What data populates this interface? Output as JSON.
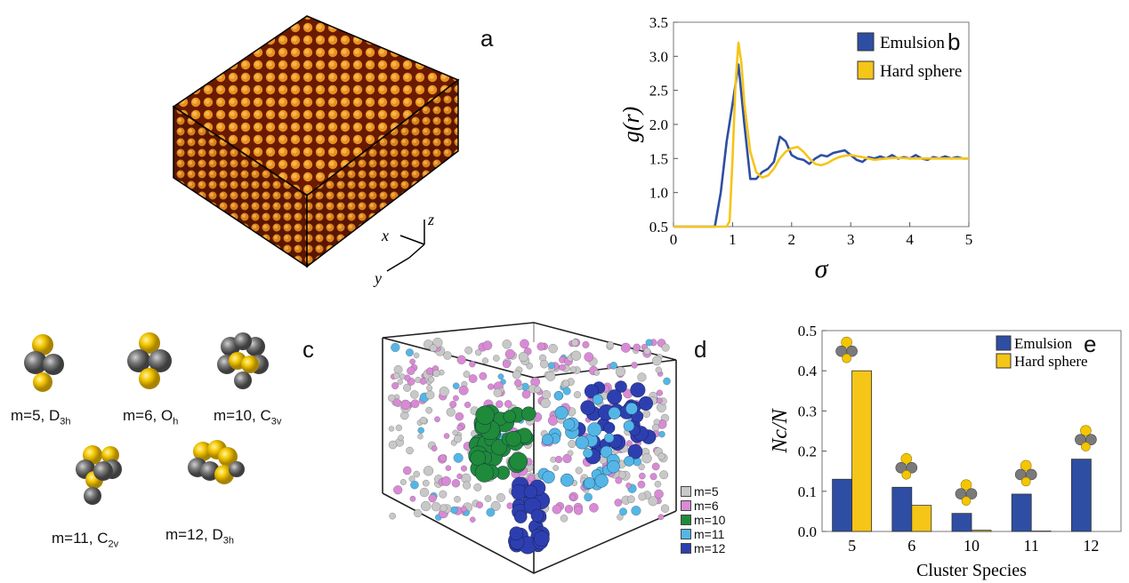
{
  "panels": {
    "a": {
      "label": "a",
      "axes": {
        "x": "x",
        "y": "y",
        "z": "z"
      }
    },
    "b": {
      "label": "b"
    },
    "c": {
      "label": "c",
      "clusters": [
        {
          "m": "m=5, ",
          "sym": "D",
          "sub": "3h"
        },
        {
          "m": "m=6, ",
          "sym": "O",
          "sub": "h"
        },
        {
          "m": "m=10, ",
          "sym": "C",
          "sub": "3v"
        },
        {
          "m": "m=11, ",
          "sym": "C",
          "sub": "2v"
        },
        {
          "m": "m=12, ",
          "sym": "D",
          "sub": "3h"
        }
      ]
    },
    "d": {
      "label": "d",
      "legend": [
        {
          "label": "m=5",
          "color": "#c8c8c8"
        },
        {
          "label": "m=6",
          "color": "#d98ad6"
        },
        {
          "label": "m=10",
          "color": "#1f8a3a"
        },
        {
          "label": "m=11",
          "color": "#54b6e6"
        },
        {
          "label": "m=12",
          "color": "#2d3fb0"
        }
      ]
    },
    "e": {
      "label": "e"
    }
  },
  "colors": {
    "emulsion": "#2e4ea3",
    "hard_sphere": "#f5c518",
    "cluster_gray": "#7a7a7a",
    "cluster_yellow": "#f3c600"
  },
  "chart_data": [
    {
      "type": "line",
      "panel": "b",
      "xlabel": "σ",
      "ylabel": "g(r)",
      "xlim": [
        0,
        5
      ],
      "ylim": [
        0.5,
        3.5
      ],
      "xticks": [
        "0",
        "1",
        "2",
        "3",
        "4",
        "5"
      ],
      "yticks": [
        "0.5",
        "1.0",
        "1.5",
        "2.0",
        "2.5",
        "3.0",
        "3.5"
      ],
      "legend_position": "top-right",
      "series": [
        {
          "name": "Emulsion",
          "color": "#2e4ea3",
          "x": [
            0,
            0.7,
            0.8,
            0.9,
            1.0,
            1.1,
            1.2,
            1.3,
            1.4,
            1.5,
            1.6,
            1.7,
            1.8,
            1.9,
            2.0,
            2.1,
            2.2,
            2.3,
            2.4,
            2.5,
            2.6,
            2.7,
            2.8,
            2.9,
            3.0,
            3.1,
            3.2,
            3.3,
            3.4,
            3.5,
            3.6,
            3.7,
            3.8,
            3.9,
            4.0,
            4.1,
            4.2,
            4.3,
            4.4,
            4.5,
            4.6,
            4.7,
            4.8,
            4.9,
            5.0
          ],
          "y": [
            0.5,
            0.5,
            1.0,
            1.75,
            2.3,
            2.88,
            2.0,
            1.2,
            1.2,
            1.3,
            1.35,
            1.45,
            1.82,
            1.75,
            1.55,
            1.5,
            1.48,
            1.42,
            1.5,
            1.55,
            1.53,
            1.58,
            1.6,
            1.62,
            1.55,
            1.48,
            1.45,
            1.52,
            1.5,
            1.53,
            1.5,
            1.55,
            1.5,
            1.52,
            1.5,
            1.55,
            1.5,
            1.48,
            1.52,
            1.5,
            1.53,
            1.5,
            1.52,
            1.5,
            1.5
          ]
        },
        {
          "name": "Hard sphere",
          "color": "#f5c518",
          "x": [
            0,
            0.9,
            0.95,
            1.0,
            1.05,
            1.1,
            1.15,
            1.2,
            1.3,
            1.4,
            1.5,
            1.6,
            1.7,
            1.8,
            1.9,
            2.0,
            2.1,
            2.2,
            2.3,
            2.4,
            2.5,
            2.6,
            2.7,
            2.8,
            2.9,
            3.0,
            3.2,
            3.4,
            3.6,
            3.8,
            4.0,
            4.2,
            4.4,
            4.6,
            4.8,
            5.0
          ],
          "y": [
            0.5,
            0.5,
            0.58,
            1.5,
            2.6,
            3.2,
            2.9,
            2.3,
            1.6,
            1.3,
            1.22,
            1.25,
            1.35,
            1.5,
            1.6,
            1.65,
            1.67,
            1.6,
            1.5,
            1.42,
            1.4,
            1.43,
            1.48,
            1.52,
            1.54,
            1.55,
            1.52,
            1.48,
            1.5,
            1.51,
            1.5,
            1.5,
            1.5,
            1.5,
            1.5,
            1.5
          ]
        }
      ]
    },
    {
      "type": "bar",
      "panel": "e",
      "xlabel": "Cluster Species",
      "ylabel": "N_c/N",
      "ylim": [
        0,
        0.5
      ],
      "yticks": [
        "0.0",
        "0.1",
        "0.2",
        "0.3",
        "0.4",
        "0.5"
      ],
      "categories": [
        "5",
        "6",
        "10",
        "11",
        "12"
      ],
      "legend_position": "top-right",
      "series": [
        {
          "name": "Emulsion",
          "color": "#2e4ea3",
          "values": [
            0.13,
            0.11,
            0.045,
            0.093,
            0.18
          ]
        },
        {
          "name": "Hard sphere",
          "color": "#f5c518",
          "values": [
            0.4,
            0.065,
            0.003,
            0.001,
            0.0
          ]
        }
      ]
    }
  ]
}
